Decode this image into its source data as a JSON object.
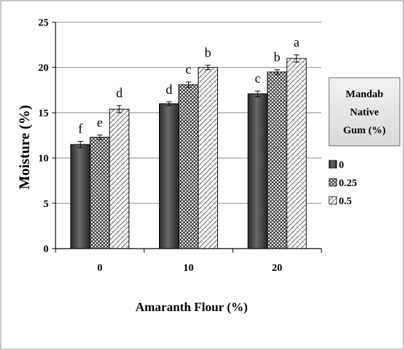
{
  "chart_data": {
    "type": "bar",
    "title": "",
    "xlabel": "Amaranth Flour (%)",
    "ylabel": "Moisture (%)",
    "ylim": [
      0,
      25
    ],
    "yticks": [
      0,
      5,
      10,
      15,
      20,
      25
    ],
    "categories": [
      "0",
      "10",
      "20"
    ],
    "grid": "horizontal",
    "legend": {
      "title_lines": [
        "Mandab",
        "Native",
        "Gum (%)"
      ],
      "position": "right"
    },
    "series": [
      {
        "name": "0",
        "values": [
          11.5,
          16.0,
          17.1
        ],
        "errors": [
          0.35,
          0.2,
          0.3
        ],
        "letters": [
          "f",
          "d",
          "c"
        ],
        "pattern": "solid-dark"
      },
      {
        "name": "0.25",
        "values": [
          12.3,
          18.1,
          19.5
        ],
        "errors": [
          0.25,
          0.3,
          0.25
        ],
        "letters": [
          "e",
          "c",
          "b"
        ],
        "pattern": "checker"
      },
      {
        "name": "0.5",
        "values": [
          15.4,
          20.0,
          21.0
        ],
        "errors": [
          0.4,
          0.25,
          0.4
        ],
        "letters": [
          "d",
          "b",
          "a"
        ],
        "pattern": "diagonal"
      }
    ]
  }
}
